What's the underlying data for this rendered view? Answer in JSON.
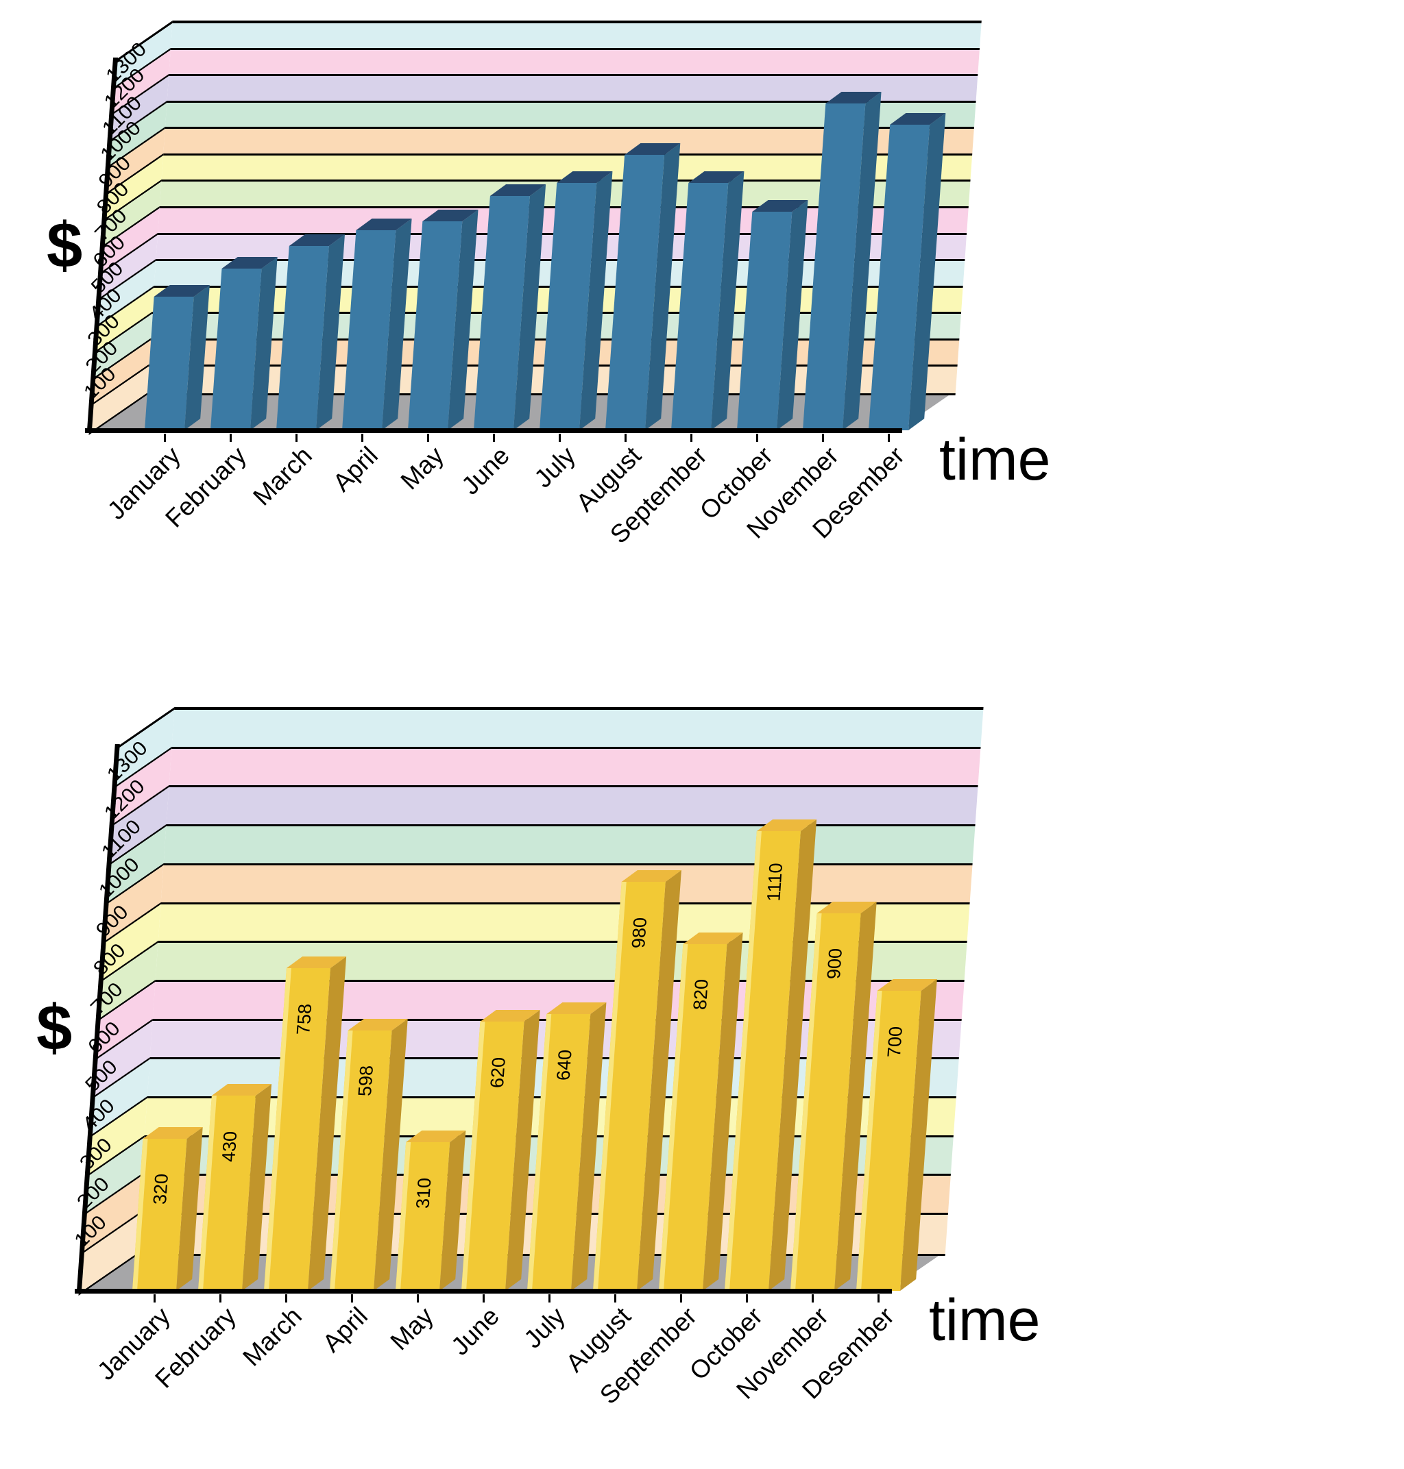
{
  "page": {
    "background_color": "#ffffff"
  },
  "chart_data": [
    {
      "type": "bar",
      "projection": "3d-oblique",
      "position": "top",
      "xlabel": "time",
      "ylabel": "$",
      "categories": [
        "January",
        "February",
        "March",
        "April",
        "May",
        "June",
        "July",
        "August",
        "September",
        "October",
        "November",
        "Desember"
      ],
      "values": [
        400,
        505,
        590,
        650,
        685,
        780,
        830,
        935,
        830,
        720,
        1130,
        1050
      ],
      "value_labels_shown": false,
      "ylim": [
        0,
        1400
      ],
      "yticks": [
        100,
        200,
        300,
        400,
        500,
        600,
        700,
        800,
        900,
        1000,
        1100,
        1200,
        1300
      ],
      "grid": true,
      "bar_colors": {
        "front": "#3B7AA4",
        "side": "#2D6183",
        "top": "#26486D"
      },
      "band_colors": [
        "#D9EFF2",
        "#FAD2E5",
        "#D8D2EA",
        "#CBE8D7",
        "#FBDAB6",
        "#FAF8B6",
        "#DDEFC8",
        "#F9D1E7",
        "#E9DAF0",
        "#DAEFF1",
        "#FAF8B6",
        "#D4EBDA",
        "#FBDAB6",
        "#FBE5C8"
      ],
      "floor_color": "#A6A6A8",
      "axis_color": "#000000"
    },
    {
      "type": "bar",
      "projection": "3d-oblique",
      "position": "bottom",
      "xlabel": "time",
      "ylabel": "$",
      "categories": [
        "January",
        "February",
        "March",
        "April",
        "May",
        "June",
        "July",
        "August",
        "September",
        "October",
        "November",
        "Desember"
      ],
      "values": [
        320,
        430,
        758,
        598,
        310,
        620,
        640,
        980,
        820,
        1110,
        900,
        700
      ],
      "value_labels_shown": true,
      "ylim": [
        0,
        1400
      ],
      "yticks": [
        100,
        200,
        300,
        400,
        500,
        600,
        700,
        800,
        900,
        1000,
        1100,
        1200,
        1300
      ],
      "grid": true,
      "bar_colors": {
        "front": "#F2C935",
        "side": "#C1952B",
        "top": "#EDB93D",
        "left_highlight": "#F9E57E"
      },
      "band_colors": [
        "#D9EFF2",
        "#FAD2E5",
        "#D8D2EA",
        "#CBE8D7",
        "#FBDAB6",
        "#FAF8B6",
        "#DDEFC8",
        "#F9D1E7",
        "#E9DAF0",
        "#DAEFF1",
        "#FAF8B6",
        "#D4EBDA",
        "#FBDAB6",
        "#FBE5C8"
      ],
      "floor_color": "#A6A6A8",
      "axis_color": "#000000"
    }
  ]
}
